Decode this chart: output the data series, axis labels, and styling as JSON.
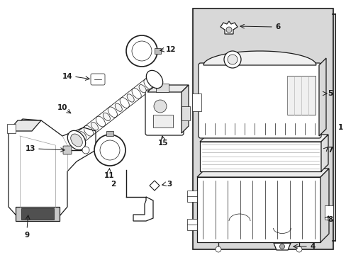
{
  "bg_color": "#ffffff",
  "lc": "#1a1a1a",
  "fig_width": 4.89,
  "fig_height": 3.6,
  "dpi": 100,
  "box_fill": "#e8e8e8",
  "white": "#ffffff",
  "light_gray": "#cccccc",
  "mid_gray": "#aaaaaa"
}
